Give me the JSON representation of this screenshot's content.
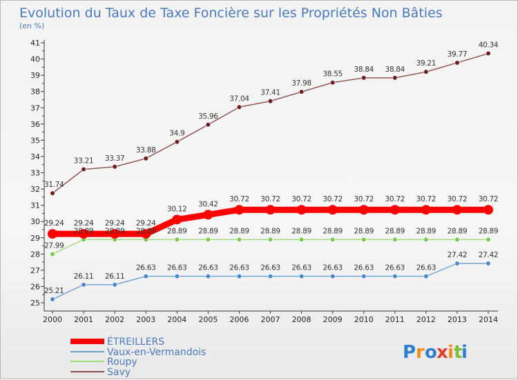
{
  "chart_data": {
    "type": "line",
    "title": "Evolution du Taux de Taxe Foncière sur les Propriétés Non Bâties",
    "unit_label": "(en %)",
    "xlabel": "",
    "ylabel": "",
    "ylim": [
      25,
      41
    ],
    "y_ticks": [
      25,
      26,
      27,
      28,
      29,
      30,
      31,
      32,
      33,
      34,
      35,
      36,
      37,
      38,
      39,
      40,
      41
    ],
    "categories": [
      "2000",
      "2001",
      "2002",
      "2003",
      "2004",
      "2005",
      "2006",
      "2007",
      "2008",
      "2009",
      "2010",
      "2011",
      "2012",
      "2013",
      "2014"
    ],
    "series": [
      {
        "name": "ÉTREILLERS",
        "color": "#ff0000",
        "marker_color": "#ff0000",
        "style": "thick",
        "values": [
          29.24,
          29.24,
          29.24,
          29.24,
          30.12,
          30.42,
          30.72,
          30.72,
          30.72,
          30.72,
          30.72,
          30.72,
          30.72,
          30.72,
          30.72
        ],
        "labels": [
          "29.24",
          "29.24",
          "29.24",
          "29.24",
          "30.12",
          "30.42",
          "30.72",
          "30.72",
          "30.72",
          "30.72",
          "30.72",
          "30.72",
          "30.72",
          "30.72",
          "30.72"
        ]
      },
      {
        "name": "Vaux-en-Vermandois",
        "color": "#6a9fcf",
        "marker_color": "#4a88c8",
        "style": "thin",
        "values": [
          25.21,
          26.11,
          26.11,
          26.63,
          26.63,
          26.63,
          26.63,
          26.63,
          26.63,
          26.63,
          26.63,
          26.63,
          26.63,
          27.42,
          27.42
        ],
        "labels": [
          "25.21",
          "26.11",
          "26.11",
          "26.63",
          "26.63",
          "26.63",
          "26.63",
          "26.63",
          "26.63",
          "26.63",
          "26.63",
          "26.63",
          "26.63",
          "27.42",
          "27.42"
        ]
      },
      {
        "name": "Roupy",
        "color": "#9ed97a",
        "marker_color": "#7cc84e",
        "style": "thin",
        "values": [
          27.99,
          28.89,
          28.89,
          28.89,
          28.89,
          28.89,
          28.89,
          28.89,
          28.89,
          28.89,
          28.89,
          28.89,
          28.89,
          28.89,
          28.89
        ],
        "labels": [
          "27.99",
          "28.89",
          "28.89",
          "28.89",
          "28.89",
          "28.89",
          "28.89",
          "28.89",
          "28.89",
          "28.89",
          "28.89",
          "28.89",
          "28.89",
          "28.89",
          "28.89"
        ]
      },
      {
        "name": "Savy",
        "color": "#8a4b4b",
        "marker_color": "#6b1e1e",
        "style": "thin",
        "values": [
          31.74,
          33.21,
          33.37,
          33.88,
          34.9,
          35.96,
          37.04,
          37.41,
          37.98,
          38.55,
          38.84,
          38.84,
          39.21,
          39.77,
          40.34
        ],
        "labels": [
          "31.74",
          "33.21",
          "33.37",
          "33.88",
          "34.9",
          "35.96",
          "37.04",
          "37.41",
          "37.98",
          "38.55",
          "38.84",
          "38.84",
          "39.21",
          "39.77",
          "40.34"
        ]
      }
    ],
    "legend": [
      "ÉTREILLERS",
      "Vaux-en-Vermandois",
      "Roupy",
      "Savy"
    ],
    "grid": false
  },
  "logo": {
    "letters": [
      "P",
      "r",
      "o",
      "x",
      "i",
      "t",
      "i"
    ],
    "colors": [
      "#2f7fd0",
      "#f08a1e",
      "#2f7fd0",
      "#e23b2e",
      "#f08a1e",
      "#7cbf3a",
      "#2f7fd0"
    ]
  }
}
